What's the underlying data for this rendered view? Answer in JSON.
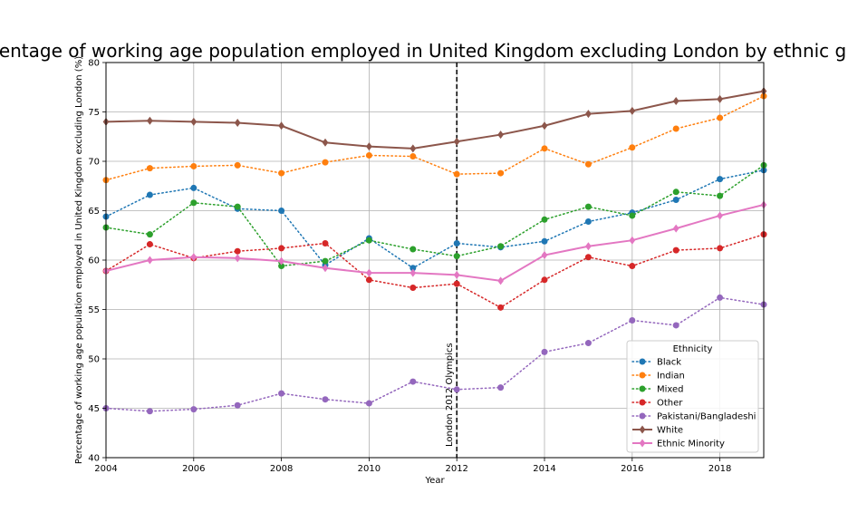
{
  "chart_data": {
    "type": "line",
    "title": "Percentage of working age population employed in United Kingdom excluding London by ethnic group",
    "xlabel": "Year",
    "ylabel": "Percentage of working age population employed in United Kingdom excluding London (%)",
    "xlim": [
      2004,
      2019
    ],
    "ylim": [
      40,
      80
    ],
    "x_ticks": [
      2004,
      2006,
      2008,
      2010,
      2012,
      2014,
      2016,
      2018
    ],
    "y_ticks": [
      40,
      45,
      50,
      55,
      60,
      65,
      70,
      75,
      80
    ],
    "grid": true,
    "legend": {
      "title": "Ethnicity",
      "placement": "lower-right"
    },
    "x": [
      2004,
      2005,
      2006,
      2007,
      2008,
      2009,
      2010,
      2011,
      2012,
      2013,
      2014,
      2015,
      2016,
      2017,
      2018,
      2019
    ],
    "series": [
      {
        "name": "Black",
        "color": "#1f77b4",
        "style": "dotted",
        "marker": "circle",
        "values": [
          64.4,
          66.6,
          67.3,
          65.2,
          65.0,
          59.5,
          62.2,
          59.2,
          61.7,
          61.3,
          61.9,
          63.9,
          64.8,
          66.1,
          68.2,
          69.1
        ]
      },
      {
        "name": "Indian",
        "color": "#ff7f0e",
        "style": "dotted",
        "marker": "circle",
        "values": [
          68.1,
          69.3,
          69.5,
          69.6,
          68.8,
          69.9,
          70.6,
          70.5,
          68.7,
          68.8,
          71.3,
          69.7,
          71.4,
          73.3,
          74.4,
          76.6
        ]
      },
      {
        "name": "Mixed",
        "color": "#2ca02c",
        "style": "dotted",
        "marker": "circle",
        "values": [
          63.3,
          62.6,
          65.8,
          65.4,
          59.4,
          59.9,
          62.0,
          61.1,
          60.4,
          61.4,
          64.1,
          65.4,
          64.5,
          66.9,
          66.5,
          69.6
        ]
      },
      {
        "name": "Other",
        "color": "#d62728",
        "style": "dotted",
        "marker": "circle",
        "values": [
          58.9,
          61.6,
          60.2,
          60.9,
          61.2,
          61.7,
          58.0,
          57.2,
          57.6,
          55.2,
          58.0,
          60.3,
          59.4,
          61.0,
          61.2,
          62.6
        ]
      },
      {
        "name": "Pakistani/Bangladeshi",
        "color": "#9467bd",
        "style": "dotted",
        "marker": "circle",
        "values": [
          45.0,
          44.7,
          44.9,
          45.3,
          46.5,
          45.9,
          45.5,
          47.7,
          46.9,
          47.1,
          50.7,
          51.6,
          53.9,
          53.4,
          56.2,
          55.5
        ]
      },
      {
        "name": "White",
        "color": "#8c564b",
        "style": "solid",
        "marker": "diamond",
        "values": [
          74.0,
          74.1,
          74.0,
          73.9,
          73.6,
          71.9,
          71.5,
          71.3,
          72.0,
          72.7,
          73.6,
          74.8,
          75.1,
          76.1,
          76.3,
          77.1
        ]
      },
      {
        "name": "Ethnic Minority",
        "color": "#e377c2",
        "style": "solid",
        "marker": "diamond",
        "values": [
          58.9,
          60.0,
          60.3,
          60.2,
          59.9,
          59.2,
          58.7,
          58.7,
          58.5,
          57.9,
          60.5,
          61.4,
          62.0,
          63.2,
          64.5,
          65.6
        ]
      }
    ],
    "annotations": [
      {
        "type": "vline",
        "x": 2012,
        "style": "dashed",
        "color": "#000000",
        "label": "London 2012 Olympics"
      }
    ]
  }
}
